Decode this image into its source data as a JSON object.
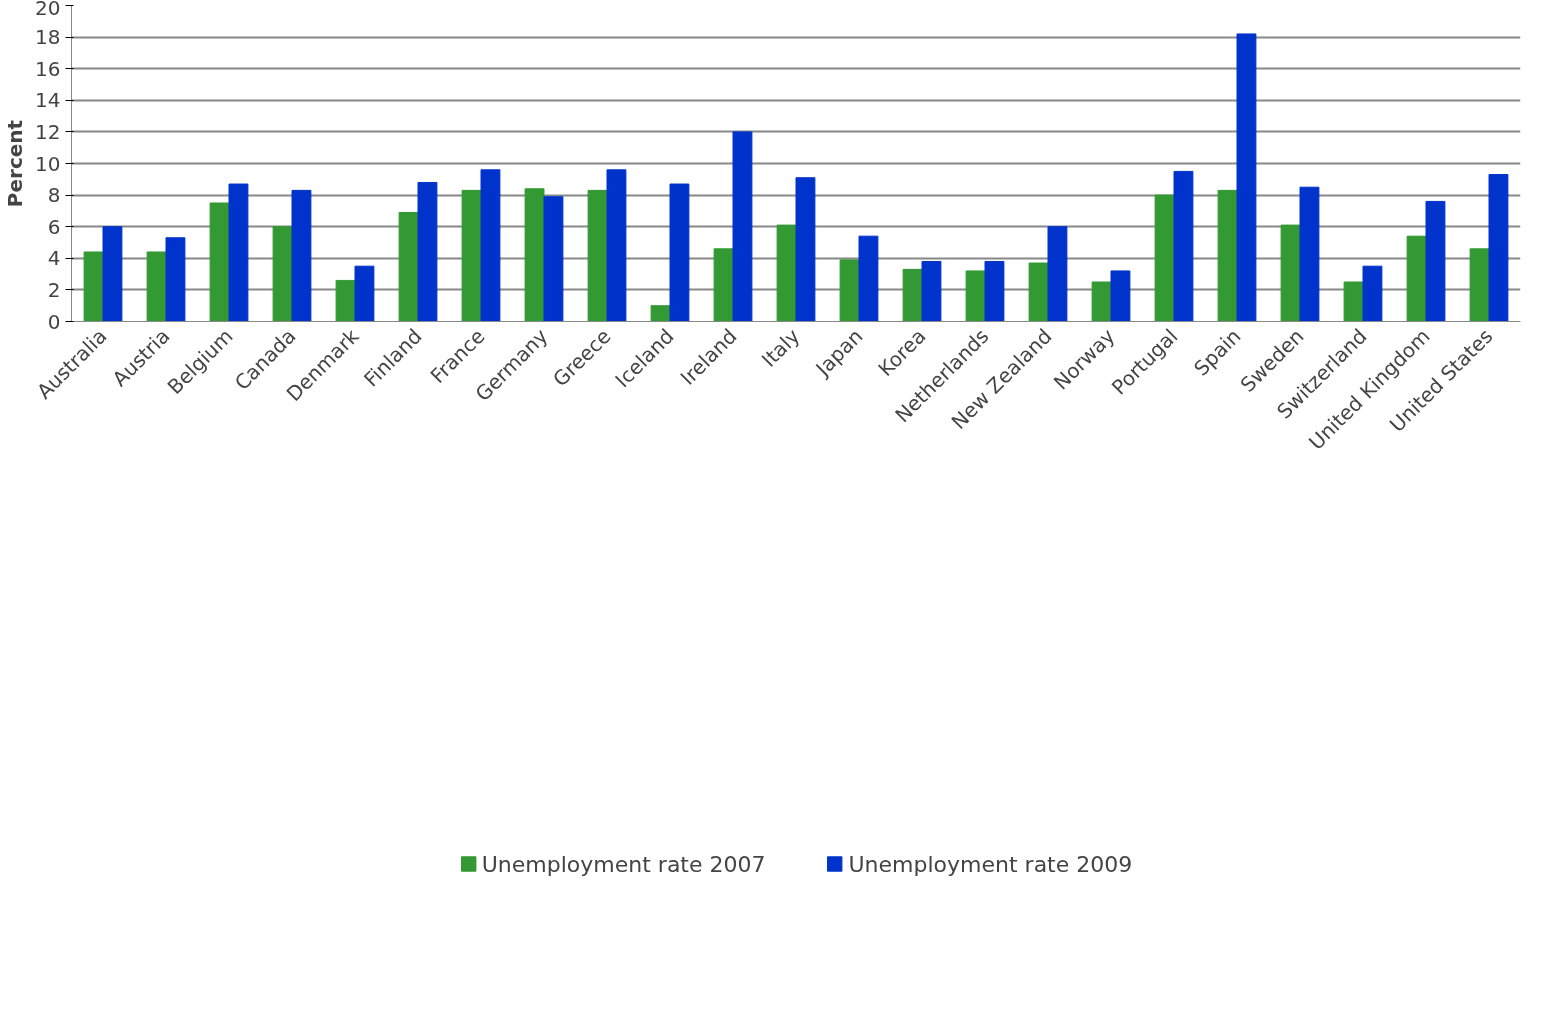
{
  "chart_data": {
    "type": "bar",
    "ylabel": "Percent",
    "categories": [
      "Australia",
      "Austria",
      "Belgium",
      "Canada",
      "Denmark",
      "Finland",
      "France",
      "Germany",
      "Greece",
      "Iceland",
      "Ireland",
      "Italy",
      "Japan",
      "Korea",
      "Netherlands",
      "New Zealand",
      "Norway",
      "Portugal",
      "Spain",
      "Sweden",
      "Switzerland",
      "United Kingdom",
      "United States"
    ],
    "series": [
      {
        "name": "Unemployment rate 2007",
        "color": "#339933",
        "values": [
          4.4,
          4.4,
          7.5,
          6.0,
          2.6,
          6.9,
          8.3,
          8.4,
          8.3,
          1.0,
          4.6,
          6.1,
          3.9,
          3.3,
          3.2,
          3.7,
          2.5,
          8.0,
          8.3,
          6.1,
          2.5,
          5.4,
          4.6
        ]
      },
      {
        "name": "Unemployment rate 2009",
        "color": "#0033cc",
        "values": [
          6.0,
          5.3,
          8.7,
          8.3,
          3.5,
          8.8,
          9.6,
          7.9,
          9.6,
          8.7,
          12.0,
          9.1,
          5.4,
          3.8,
          3.8,
          6.0,
          3.2,
          9.5,
          18.2,
          8.5,
          3.5,
          7.6,
          9.3
        ]
      }
    ],
    "ylim": [
      0,
      20
    ],
    "yticks": [
      0,
      2,
      4,
      6,
      8,
      10,
      12,
      14,
      16,
      18,
      20
    ],
    "grid": "y",
    "legend": "bottom"
  }
}
